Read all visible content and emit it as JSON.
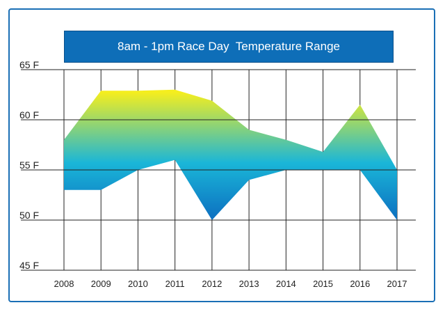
{
  "chart_data": {
    "type": "area",
    "title": "8am - 1pm Race Day  Temperature Range",
    "xlabel": "",
    "ylabel": "",
    "x": [
      "2008",
      "2009",
      "2010",
      "2011",
      "2012",
      "2013",
      "2014",
      "2015",
      "2016",
      "2017"
    ],
    "y_ticks": [
      "65 F",
      "60 F",
      "55 F",
      "50 F",
      "45 F"
    ],
    "y_tick_values": [
      65,
      60,
      55,
      50,
      45
    ],
    "ylim": [
      45,
      65
    ],
    "grid": true,
    "series": [
      {
        "values": [
          58,
          62.9,
          62.9,
          63,
          61.9,
          59,
          58,
          56.8,
          61.5,
          55
        ]
      },
      {
        "values": [
          53,
          53,
          55,
          56,
          50,
          54,
          55,
          55,
          55,
          50
        ]
      }
    ],
    "gradient_colors": [
      "#f5ee1e",
      "#1ab6d8",
      "#0d6fc0"
    ]
  }
}
